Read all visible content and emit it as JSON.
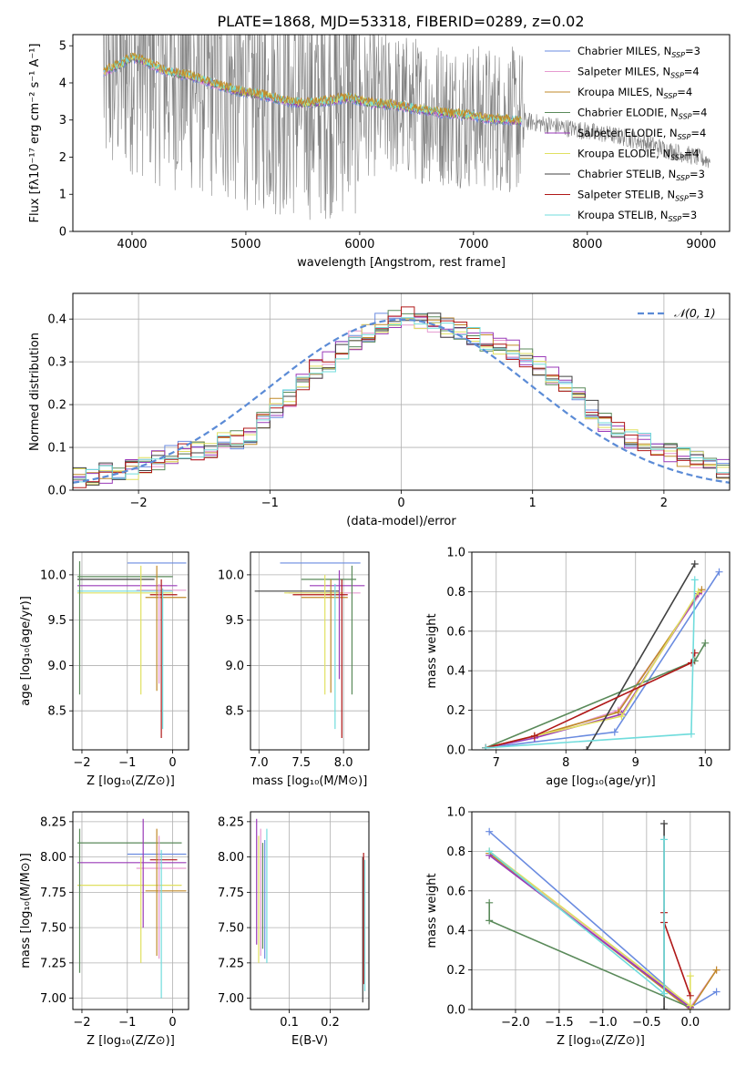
{
  "figure_title": "PLATE=1868, MJD=53318, FIBERID=0289, z=0.02",
  "models": [
    {
      "name": "Chabrier MILES, N",
      "sub": "SSP",
      "tail": "=3",
      "color": "#6a8be0"
    },
    {
      "name": "Salpeter MILES, N",
      "sub": "SSP",
      "tail": "=4",
      "color": "#e69ad0"
    },
    {
      "name": "Kroupa MILES, N",
      "sub": "SSP",
      "tail": "=4",
      "color": "#c08a2a"
    },
    {
      "name": "Chabrier ELODIE, N",
      "sub": "SSP",
      "tail": "=4",
      "color": "#5a8a5a"
    },
    {
      "name": "Salpeter ELODIE, N",
      "sub": "SSP",
      "tail": "=4",
      "color": "#9a3ab8"
    },
    {
      "name": "Kroupa ELODIE, N",
      "sub": "SSP",
      "tail": "=4",
      "color": "#e0e060"
    },
    {
      "name": "Chabrier STELIB, N",
      "sub": "SSP",
      "tail": "=3",
      "color": "#404040"
    },
    {
      "name": "Salpeter STELIB, N",
      "sub": "SSP",
      "tail": "=3",
      "color": "#b01818"
    },
    {
      "name": "Kroupa STELIB, N",
      "sub": "SSP",
      "tail": "=3",
      "color": "#70dcdc"
    }
  ],
  "chart_data": [
    {
      "type": "line",
      "id": "spectrum",
      "title": "PLATE=1868, MJD=53318, FIBERID=0289, z=0.02",
      "xlabel": "wavelength [Angstrom, rest frame]",
      "ylabel": "Flux [fλ10⁻¹⁷ erg cm⁻² s⁻¹ A⁻¹]",
      "xlim": [
        3480,
        9250
      ],
      "ylim": [
        0,
        5.3
      ],
      "xticks": [
        "4000",
        "5000",
        "6000",
        "7000",
        "8000",
        "9000"
      ],
      "xtick_values": [
        4000,
        5000,
        6000,
        7000,
        8000,
        9000
      ],
      "yticks": [
        "0",
        "1",
        "2",
        "3",
        "4",
        "5"
      ],
      "ytick_values": [
        0,
        1,
        2,
        3,
        4,
        5
      ],
      "grid": false,
      "legend": "top-right",
      "data_range": [
        3750,
        9080
      ],
      "model_range": [
        3750,
        7420
      ],
      "continuum": [
        [
          3750,
          4.3
        ],
        [
          3900,
          4.5
        ],
        [
          4000,
          4.7
        ],
        [
          4100,
          4.6
        ],
        [
          4300,
          4.3
        ],
        [
          4500,
          4.2
        ],
        [
          4700,
          4.0
        ],
        [
          4900,
          3.8
        ],
        [
          5100,
          3.7
        ],
        [
          5300,
          3.55
        ],
        [
          5500,
          3.45
        ],
        [
          5700,
          3.5
        ],
        [
          5900,
          3.6
        ],
        [
          6100,
          3.45
        ],
        [
          6300,
          3.4
        ],
        [
          6500,
          3.3
        ],
        [
          6700,
          3.2
        ],
        [
          6900,
          3.15
        ],
        [
          7100,
          3.05
        ],
        [
          7300,
          3.0
        ],
        [
          7500,
          2.95
        ],
        [
          7700,
          2.85
        ],
        [
          7900,
          2.75
        ],
        [
          8100,
          2.65
        ],
        [
          8300,
          2.55
        ],
        [
          8500,
          2.4
        ],
        [
          8700,
          2.2
        ],
        [
          8900,
          2.05
        ],
        [
          9080,
          1.9
        ]
      ]
    },
    {
      "type": "bar",
      "id": "residuals",
      "xlabel": "(data-model)/error",
      "ylabel": "Normed distribution",
      "xlim": [
        -2.5,
        2.5
      ],
      "ylim": [
        0,
        0.46
      ],
      "xticks": [
        "−2",
        "−1",
        "0",
        "1",
        "2"
      ],
      "xtick_values": [
        -2,
        -1,
        0,
        1,
        2
      ],
      "yticks": [
        "0.0",
        "0.1",
        "0.2",
        "0.3",
        "0.4"
      ],
      "ytick_values": [
        0,
        0.1,
        0.2,
        0.3,
        0.4
      ],
      "grid": true,
      "legend": "top-right",
      "reference_label": "𝒩(0, 1)",
      "reference_color": "#5b8bd6",
      "bin_width": 0.1,
      "histogram": [
        0.03,
        0.035,
        0.04,
        0.045,
        0.05,
        0.06,
        0.07,
        0.08,
        0.09,
        0.095,
        0.1,
        0.11,
        0.12,
        0.13,
        0.16,
        0.19,
        0.22,
        0.25,
        0.28,
        0.3,
        0.33,
        0.35,
        0.37,
        0.39,
        0.4,
        0.41,
        0.4,
        0.39,
        0.38,
        0.37,
        0.36,
        0.35,
        0.34,
        0.33,
        0.31,
        0.29,
        0.27,
        0.25,
        0.22,
        0.19,
        0.16,
        0.14,
        0.12,
        0.11,
        0.1,
        0.09,
        0.08,
        0.07,
        0.06,
        0.05
      ]
    },
    {
      "type": "scatter",
      "id": "age-vs-z",
      "xlabel": "Z [log₁₀(Z/Z⊙)]",
      "ylabel": "age  [log₁₀(age/yr)]",
      "xlim": [
        -2.2,
        0.35
      ],
      "ylim": [
        8.07,
        10.25
      ],
      "xticks": [
        "−2",
        "−1",
        "0"
      ],
      "xtick_values": [
        -2,
        -1,
        0
      ],
      "yticks": [
        "8.5",
        "9.0",
        "9.5",
        "10.0"
      ],
      "ytick_values": [
        8.5,
        9.0,
        9.5,
        10.0
      ],
      "grid": true,
      "hlines": [
        [
          -1.0,
          0.3,
          10.13,
          0
        ],
        [
          -2.1,
          0.0,
          9.98,
          3
        ],
        [
          -2.1,
          0.1,
          9.88,
          4
        ],
        [
          -0.8,
          0.3,
          9.83,
          1
        ],
        [
          -2.1,
          0.0,
          9.8,
          5
        ],
        [
          -0.5,
          0.1,
          9.78,
          7
        ],
        [
          -0.6,
          0.3,
          9.75,
          2
        ],
        [
          -2.1,
          -0.4,
          9.95,
          6
        ],
        [
          -2.1,
          0.0,
          9.82,
          8
        ]
      ],
      "vlines": [
        [
          -2.05,
          8.68,
          10.15,
          3
        ],
        [
          -0.7,
          8.68,
          10.1,
          5
        ],
        [
          -0.35,
          8.72,
          10.1,
          2
        ],
        [
          -0.3,
          8.8,
          9.9,
          1
        ],
        [
          -0.25,
          8.2,
          9.95,
          7
        ],
        [
          -0.22,
          8.3,
          9.85,
          8
        ]
      ]
    },
    {
      "type": "scatter",
      "id": "age-vs-mass",
      "xlabel": "mass [log₁₀(M/M⊙)]",
      "ylabel": "",
      "xlim": [
        6.9,
        8.3
      ],
      "ylim": [
        8.07,
        10.25
      ],
      "xticks": [
        "7.0",
        "7.5",
        "8.0"
      ],
      "xtick_values": [
        7.0,
        7.5,
        8.0
      ],
      "yticks": [
        "8.5",
        "9.0",
        "9.5",
        "10.0"
      ],
      "ytick_values": [
        8.5,
        9.0,
        9.5,
        10.0
      ],
      "grid": true,
      "hlines": [
        [
          7.25,
          8.2,
          10.13,
          0
        ],
        [
          7.5,
          8.15,
          9.95,
          3
        ],
        [
          7.6,
          8.25,
          9.88,
          4
        ],
        [
          7.35,
          8.2,
          9.8,
          1
        ],
        [
          6.95,
          7.95,
          9.82,
          6
        ],
        [
          7.3,
          8.0,
          9.8,
          5
        ],
        [
          7.4,
          8.05,
          9.78,
          7
        ],
        [
          7.5,
          8.05,
          9.75,
          2
        ]
      ],
      "vlines": [
        [
          7.78,
          8.68,
          10.0,
          5
        ],
        [
          7.85,
          8.7,
          9.95,
          2
        ],
        [
          7.9,
          8.3,
          9.9,
          8
        ],
        [
          7.95,
          8.85,
          10.05,
          4
        ],
        [
          7.98,
          8.2,
          9.95,
          7
        ],
        [
          8.1,
          8.68,
          10.1,
          3
        ]
      ]
    },
    {
      "type": "line",
      "id": "weight-vs-age",
      "xlabel": "age  [log₁₀(age/yr)]",
      "ylabel": "mass weight",
      "xlim": [
        6.65,
        10.35
      ],
      "ylim": [
        0,
        1.0
      ],
      "xticks": [
        "7",
        "8",
        "9",
        "10"
      ],
      "xtick_values": [
        7,
        8,
        9,
        10
      ],
      "yticks": [
        "0.0",
        "0.2",
        "0.4",
        "0.6",
        "0.8",
        "1.0"
      ],
      "ytick_values": [
        0,
        0.2,
        0.4,
        0.6,
        0.8,
        1.0
      ],
      "grid": true,
      "series": [
        {
          "model": 0,
          "x": [
            6.85,
            8.7,
            10.2
          ],
          "y": [
            0.01,
            0.09,
            0.9
          ]
        },
        {
          "model": 1,
          "x": [
            6.85,
            7.55,
            8.75,
            9.95
          ],
          "y": [
            0.01,
            0.06,
            0.2,
            0.8
          ]
        },
        {
          "model": 2,
          "x": [
            6.85,
            7.55,
            8.75,
            9.95
          ],
          "y": [
            0.01,
            0.07,
            0.19,
            0.81
          ]
        },
        {
          "model": 3,
          "x": [
            6.85,
            9.85,
            10.0
          ],
          "y": [
            0.01,
            0.45,
            0.54
          ]
        },
        {
          "model": 4,
          "x": [
            6.85,
            7.55,
            8.8,
            9.9
          ],
          "y": [
            0.01,
            0.06,
            0.18,
            0.79
          ]
        },
        {
          "model": 5,
          "x": [
            6.85,
            7.55,
            8.8,
            9.9
          ],
          "y": [
            0.01,
            0.07,
            0.17,
            0.8
          ]
        },
        {
          "model": 6,
          "x": [
            8.3,
            9.85
          ],
          "y": [
            0.0,
            0.94
          ]
        },
        {
          "model": 7,
          "x": [
            6.85,
            7.55,
            9.8,
            9.85
          ],
          "y": [
            0.01,
            0.07,
            0.44,
            0.49
          ]
        },
        {
          "model": 8,
          "x": [
            6.85,
            9.8,
            9.85
          ],
          "y": [
            0.01,
            0.08,
            0.86
          ]
        }
      ]
    },
    {
      "type": "scatter",
      "id": "mass-vs-z",
      "xlabel": "Z [log₁₀(Z/Z⊙)]",
      "ylabel": "mass [log₁₀(M/M⊙)]",
      "xlim": [
        -2.2,
        0.35
      ],
      "ylim": [
        6.92,
        8.32
      ],
      "xticks": [
        "−2",
        "−1",
        "0"
      ],
      "xtick_values": [
        -2,
        -1,
        0
      ],
      "yticks": [
        "7.00",
        "7.25",
        "7.50",
        "7.75",
        "8.00",
        "8.25"
      ],
      "ytick_values": [
        7.0,
        7.25,
        7.5,
        7.75,
        8.0,
        8.25
      ],
      "grid": true,
      "hlines": [
        [
          -2.1,
          0.2,
          8.1,
          3
        ],
        [
          -1.0,
          0.3,
          8.02,
          0
        ],
        [
          -0.5,
          0.1,
          7.98,
          7
        ],
        [
          -2.1,
          0.3,
          7.96,
          4
        ],
        [
          -0.8,
          0.3,
          7.92,
          1
        ],
        [
          -2.1,
          0.2,
          7.8,
          5
        ],
        [
          -0.6,
          0.3,
          7.76,
          2
        ]
      ],
      "vlines": [
        [
          -2.05,
          7.18,
          8.2,
          3
        ],
        [
          -0.7,
          7.25,
          8.0,
          5
        ],
        [
          -0.65,
          7.5,
          8.27,
          4
        ],
        [
          -0.35,
          7.3,
          8.2,
          2
        ],
        [
          -0.3,
          7.28,
          8.15,
          1
        ],
        [
          -0.25,
          7.0,
          8.05,
          8
        ]
      ]
    },
    {
      "type": "scatter",
      "id": "mass-vs-ebv",
      "xlabel": "E(B-V)",
      "ylabel": "",
      "xlim": [
        0.005,
        0.295
      ],
      "ylim": [
        6.92,
        8.32
      ],
      "xticks": [
        "0.1",
        "0.2"
      ],
      "xtick_values": [
        0.1,
        0.2
      ],
      "yticks": [
        "7.00",
        "7.25",
        "7.50",
        "7.75",
        "8.00",
        "8.25"
      ],
      "ytick_values": [
        7.0,
        7.25,
        7.5,
        7.75,
        8.0,
        8.25
      ],
      "grid": true,
      "vlines": [
        [
          0.02,
          7.38,
          8.27,
          4
        ],
        [
          0.025,
          7.25,
          8.15,
          5
        ],
        [
          0.03,
          7.3,
          8.2,
          1
        ],
        [
          0.035,
          7.35,
          8.1,
          3
        ],
        [
          0.04,
          7.28,
          8.12,
          0
        ],
        [
          0.045,
          7.25,
          8.2,
          8
        ],
        [
          0.28,
          6.97,
          8.0,
          6
        ],
        [
          0.282,
          7.1,
          8.03,
          7
        ],
        [
          0.285,
          7.05,
          7.98,
          8
        ]
      ]
    },
    {
      "type": "line",
      "id": "weight-vs-z",
      "xlabel": "Z [log₁₀(Z/Z⊙)]",
      "ylabel": "mass weight",
      "xlim": [
        -2.5,
        0.45
      ],
      "ylim": [
        0,
        1.0
      ],
      "xticks": [
        "−2.0",
        "−1.5",
        "−1.0",
        "−0.5",
        "0.0"
      ],
      "xtick_values": [
        -2.0,
        -1.5,
        -1.0,
        -0.5,
        0.0
      ],
      "yticks": [
        "0.0",
        "0.2",
        "0.4",
        "0.6",
        "0.8",
        "1.0"
      ],
      "ytick_values": [
        0,
        0.2,
        0.4,
        0.6,
        0.8,
        1.0
      ],
      "grid": true,
      "series": [
        {
          "model": 0,
          "x": [
            -2.3,
            0.0,
            0.3
          ],
          "y": [
            0.9,
            0.01,
            0.09
          ]
        },
        {
          "model": 1,
          "x": [
            -2.3,
            0.0,
            0.3
          ],
          "y": [
            0.8,
            0.01,
            0.2
          ]
        },
        {
          "model": 2,
          "x": [
            -2.3,
            0.0,
            0.3
          ],
          "y": [
            0.79,
            0.0,
            0.2
          ]
        },
        {
          "model": 3,
          "x": [
            -2.3,
            -2.3,
            0.0
          ],
          "y": [
            0.54,
            0.45,
            0.01
          ]
        },
        {
          "model": 4,
          "x": [
            -2.3,
            0.0
          ],
          "y": [
            0.78,
            0.01
          ]
        },
        {
          "model": 5,
          "x": [
            -2.3,
            0.0,
            0.0
          ],
          "y": [
            0.8,
            0.02,
            0.17
          ]
        },
        {
          "model": 6,
          "x": [
            -0.3,
            -0.3,
            -0.3
          ],
          "y": [
            0.0,
            0.0,
            0.94
          ]
        },
        {
          "model": 7,
          "x": [
            -0.3,
            -0.3,
            0.0
          ],
          "y": [
            0.49,
            0.44,
            0.07
          ]
        },
        {
          "model": 8,
          "x": [
            -2.3,
            -0.3,
            -0.3
          ],
          "y": [
            0.8,
            0.08,
            0.86
          ]
        }
      ]
    }
  ]
}
